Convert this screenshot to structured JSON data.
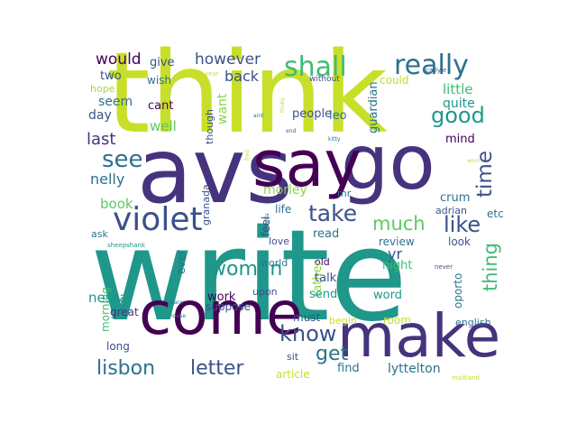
{
  "palette": {
    "yellow": "#c8df2a",
    "purple": "#46337e",
    "teal": "#1f978b",
    "darkblue": "#3b518b",
    "blue": "#2c728e",
    "green": "#3ebc73",
    "light_green": "#8bd646",
    "deep": "#440154"
  },
  "words": [
    {
      "text": "write",
      "color": "#1f978b"
    },
    {
      "text": "think",
      "color": "#c8df2a"
    },
    {
      "text": "avs",
      "color": "#46337e"
    },
    {
      "text": "go",
      "color": "#46337e"
    },
    {
      "text": "say",
      "color": "#440154"
    },
    {
      "text": "come",
      "color": "#440154"
    },
    {
      "text": "make",
      "color": "#46337e"
    },
    {
      "text": "violet",
      "color": "#3b518b"
    },
    {
      "text": "really",
      "color": "#2c728e"
    },
    {
      "text": "shall",
      "color": "#3ebc73"
    },
    {
      "text": "good",
      "color": "#1f978b"
    },
    {
      "text": "see",
      "color": "#2c728e"
    },
    {
      "text": "time",
      "color": "#3b518b"
    },
    {
      "text": "take",
      "color": "#3b518b"
    },
    {
      "text": "like",
      "color": "#3b518b"
    },
    {
      "text": "much",
      "color": "#5ec962"
    },
    {
      "text": "woman",
      "color": "#1f978b"
    },
    {
      "text": "know",
      "color": "#3b518b"
    },
    {
      "text": "get",
      "color": "#2c728e"
    },
    {
      "text": "lisbon",
      "color": "#2c728e"
    },
    {
      "text": "letter",
      "color": "#3b518b"
    },
    {
      "text": "thing",
      "color": "#3ebc73"
    },
    {
      "text": "would",
      "color": "#440154"
    },
    {
      "text": "give",
      "color": "#3b518b"
    },
    {
      "text": "however",
      "color": "#3b518b"
    },
    {
      "text": "back",
      "color": "#3b518b"
    },
    {
      "text": "two",
      "color": "#3b518b"
    },
    {
      "text": "hope",
      "color": "#a5db36"
    },
    {
      "text": "wish",
      "color": "#2c728e"
    },
    {
      "text": "year",
      "color": "#c8df2a"
    },
    {
      "text": "without",
      "color": "#3b518b"
    },
    {
      "text": "could",
      "color": "#c8df2a"
    },
    {
      "text": "carlyle",
      "color": "#3b518b"
    },
    {
      "text": "seem",
      "color": "#2c728e"
    },
    {
      "text": "cant",
      "color": "#440154"
    },
    {
      "text": "well",
      "color": "#5ec962"
    },
    {
      "text": "day",
      "color": "#3b518b"
    },
    {
      "text": "last",
      "color": "#46337e"
    },
    {
      "text": "want",
      "color": "#8bd646"
    },
    {
      "text": "though",
      "color": "#3b518b"
    },
    {
      "text": "thoby",
      "color": "#c8df2a"
    },
    {
      "text": "aint",
      "color": "#2c728e"
    },
    {
      "text": "end",
      "color": "#2c728e"
    },
    {
      "text": "fred",
      "color": "#c8df2a"
    },
    {
      "text": "kitty",
      "color": "#2c728e"
    },
    {
      "text": "people",
      "color": "#3b518b"
    },
    {
      "text": "leo",
      "color": "#2c728e"
    },
    {
      "text": "guardian",
      "color": "#2c728e"
    },
    {
      "text": "little",
      "color": "#3ebc73"
    },
    {
      "text": "quite",
      "color": "#1f978b"
    },
    {
      "text": "mind",
      "color": "#440154"
    },
    {
      "text": "worn",
      "color": "#c8df2a"
    },
    {
      "text": "nelly",
      "color": "#2c728e"
    },
    {
      "text": "morley",
      "color": "#8bd646"
    },
    {
      "text": "granada",
      "color": "#3b518b"
    },
    {
      "text": "mr",
      "color": "#2c728e"
    },
    {
      "text": "crum",
      "color": "#2c728e"
    },
    {
      "text": "book",
      "color": "#5ec962"
    },
    {
      "text": "feel",
      "color": "#3b518b"
    },
    {
      "text": "life",
      "color": "#2c728e"
    },
    {
      "text": "ella",
      "color": "#2c728e"
    },
    {
      "text": "adrian",
      "color": "#3b518b"
    },
    {
      "text": "etc",
      "color": "#2c728e"
    },
    {
      "text": "ask",
      "color": "#2c728e"
    },
    {
      "text": "sheepshank",
      "color": "#1f978b"
    },
    {
      "text": "read",
      "color": "#2c728e"
    },
    {
      "text": "look",
      "color": "#3b518b"
    },
    {
      "text": "review",
      "color": "#2c728e"
    },
    {
      "text": "love",
      "color": "#3b518b"
    },
    {
      "text": "world",
      "color": "#2c728e"
    },
    {
      "text": "old",
      "color": "#440154"
    },
    {
      "text": "rather",
      "color": "#8bd646"
    },
    {
      "text": "yr",
      "color": "#3b518b"
    },
    {
      "text": "night",
      "color": "#3ebc73"
    },
    {
      "text": "never",
      "color": "#3b518b"
    },
    {
      "text": "talk",
      "color": "#3b518b"
    },
    {
      "text": "ever",
      "color": "#2c728e"
    },
    {
      "text": "morning",
      "color": "#3ebc73"
    },
    {
      "text": "work",
      "color": "#440154"
    },
    {
      "text": "upon",
      "color": "#3b518b"
    },
    {
      "text": "send",
      "color": "#1f978b"
    },
    {
      "text": "word",
      "color": "#1f978b"
    },
    {
      "text": "oporto",
      "color": "#2c728e"
    },
    {
      "text": "suppose",
      "color": "#3b518b"
    },
    {
      "text": "place",
      "color": "#2c728e"
    },
    {
      "text": "house",
      "color": "#2c728e"
    },
    {
      "text": "nessa",
      "color": "#1f978b"
    },
    {
      "text": "great",
      "color": "#46337e"
    },
    {
      "text": "must",
      "color": "#3b518b"
    },
    {
      "text": "begin",
      "color": "#c8df2a"
    },
    {
      "text": "room",
      "color": "#c8df2a"
    },
    {
      "text": "english",
      "color": "#2c728e"
    },
    {
      "text": "long",
      "color": "#3b518b"
    },
    {
      "text": "sit",
      "color": "#3b518b"
    },
    {
      "text": "find",
      "color": "#2c728e"
    },
    {
      "text": "lyttelton",
      "color": "#2c728e"
    },
    {
      "text": "article",
      "color": "#c8df2a"
    },
    {
      "text": "maitland",
      "color": "#c8df2a"
    }
  ]
}
